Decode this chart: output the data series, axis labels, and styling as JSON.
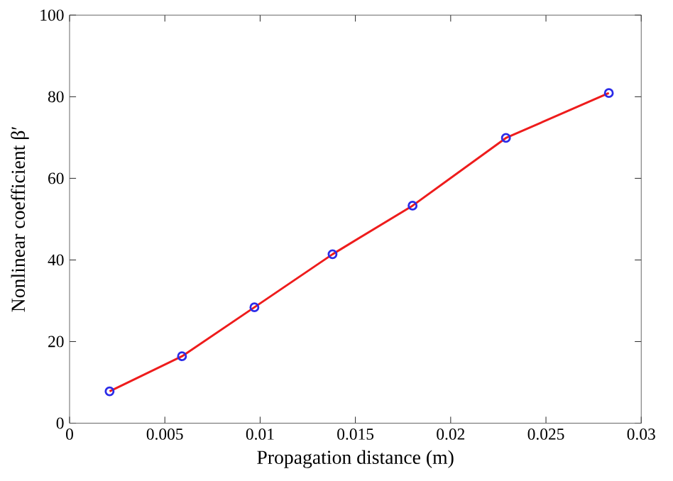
{
  "chart_data": {
    "type": "line",
    "xlabel": "Propagation distance (m)",
    "ylabel": "Nonlinear coefficient β′",
    "x": [
      0.0021,
      0.0059,
      0.0097,
      0.0138,
      0.018,
      0.0229,
      0.0283
    ],
    "series": [
      {
        "color": "#ee1c1c",
        "line_style": "solid",
        "values": [
          7.8,
          16.4,
          28.4,
          41.4,
          53.3,
          69.9,
          80.9
        ]
      },
      {
        "type": "scatter",
        "color": "#2b2be8",
        "marker": "circle",
        "values": [
          7.8,
          16.4,
          28.4,
          41.4,
          53.3,
          69.9,
          80.9
        ]
      }
    ],
    "xlim": [
      0,
      0.03
    ],
    "ylim": [
      0,
      100
    ],
    "xticks": [
      0,
      0.005,
      0.01,
      0.015,
      0.02,
      0.025,
      0.03
    ],
    "yticks": [
      0,
      20,
      40,
      60,
      80,
      100
    ],
    "grid": false
  }
}
